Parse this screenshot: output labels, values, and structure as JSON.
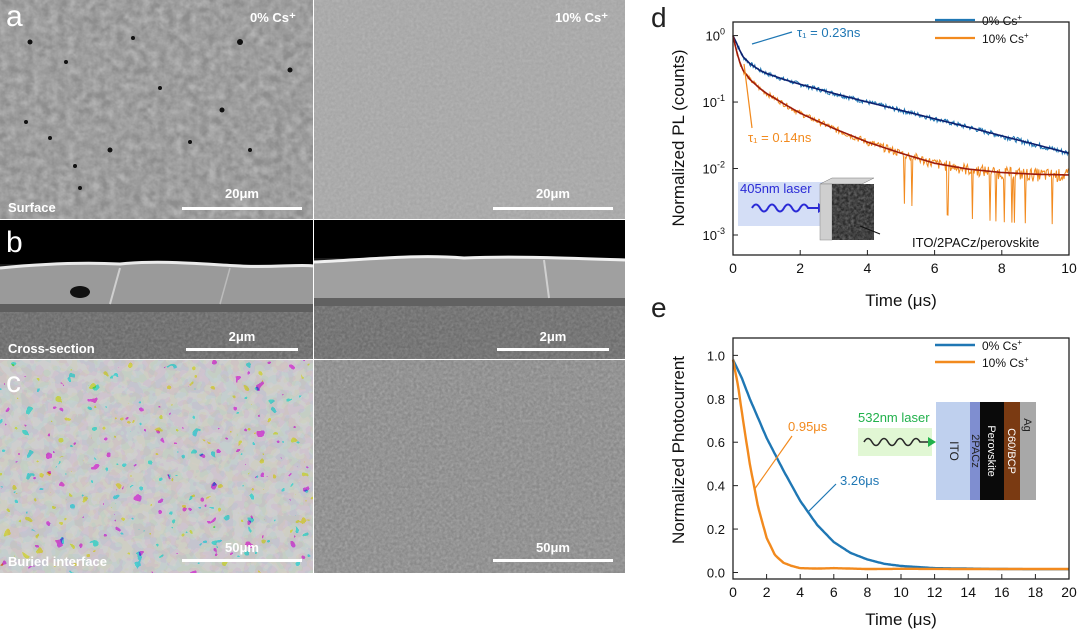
{
  "panels": {
    "a": {
      "label": "a",
      "tag": "Surface",
      "left_title": "0% Cs⁺",
      "right_title": "10% Cs⁺",
      "scale_left": "20μm",
      "scale_right": "20μm"
    },
    "b": {
      "label": "b",
      "tag": "Cross-section",
      "scale_left": "2μm",
      "scale_right": "2μm"
    },
    "c": {
      "label": "c",
      "tag": "Buried interface",
      "scale_left": "50μm",
      "scale_right": "50μm"
    },
    "d": {
      "label": "d"
    },
    "e": {
      "label": "e"
    }
  },
  "colors": {
    "blue": "#1f77b4",
    "orange": "#f28a1e",
    "dark_blue": "#0d1f6e",
    "dark_red": "#9c1b0c",
    "green": "#22b14c",
    "laser_blue": "#2a2ad6"
  },
  "chart_data": [
    {
      "id": "d",
      "type": "line",
      "title": "",
      "xlabel": "Time (μs)",
      "ylabel": "Normalized PL (counts)",
      "xlim": [
        0,
        10
      ],
      "ylim": [
        0.0005,
        1.6
      ],
      "yscale": "log",
      "xticks": [
        0,
        2,
        4,
        6,
        8,
        10
      ],
      "yticks": [
        {
          "value": 1,
          "mantissa": "10",
          "exp": "0"
        },
        {
          "value": 0.1,
          "mantissa": "10",
          "exp": "-1"
        },
        {
          "value": 0.01,
          "mantissa": "10",
          "exp": "-2"
        },
        {
          "value": 0.001,
          "mantissa": "10",
          "exp": "-3"
        }
      ],
      "legend": {
        "position": "top-right",
        "entries": [
          {
            "name": "0% Cs",
            "sup": "+"
          },
          {
            "name": "10% Cs",
            "sup": "+"
          }
        ]
      },
      "series": [
        {
          "name": "0% Cs+",
          "color": "#1f77b4",
          "fit_color": "#0d1f6e",
          "x": [
            0,
            0.1,
            0.2,
            0.3,
            0.5,
            0.8,
            1,
            1.5,
            2,
            3,
            4,
            5,
            6,
            7,
            8,
            9,
            10
          ],
          "values": [
            1.0,
            0.78,
            0.6,
            0.48,
            0.38,
            0.3,
            0.27,
            0.22,
            0.185,
            0.135,
            0.1,
            0.075,
            0.056,
            0.042,
            0.031,
            0.023,
            0.017
          ]
        },
        {
          "name": "10% Cs+",
          "color": "#f28a1e",
          "fit_color": "#9c1b0c",
          "x": [
            0,
            0.1,
            0.2,
            0.3,
            0.5,
            0.8,
            1,
            1.5,
            2,
            3,
            4,
            5,
            6,
            7,
            8,
            9,
            10
          ],
          "values": [
            1.0,
            0.6,
            0.4,
            0.3,
            0.22,
            0.16,
            0.135,
            0.095,
            0.068,
            0.04,
            0.025,
            0.017,
            0.012,
            0.0098,
            0.0087,
            0.0082,
            0.008
          ]
        }
      ],
      "annotations": [
        {
          "text": "τ₁ = 0.23ns",
          "color": "#1f77b4"
        },
        {
          "text": "τ₁ = 0.14ns",
          "color": "#f28a1e"
        },
        {
          "text": "405nm laser",
          "color": "#2a2ad6"
        },
        {
          "text": "ITO/2PACz/perovskite",
          "color": "#111111"
        }
      ]
    },
    {
      "id": "e",
      "type": "line",
      "title": "",
      "xlabel": "Time (μs)",
      "ylabel": "Normalized Photocurrent",
      "xlim": [
        0,
        20
      ],
      "ylim": [
        -0.03,
        1.08
      ],
      "xticks": [
        0,
        2,
        4,
        6,
        8,
        10,
        12,
        14,
        16,
        18,
        20
      ],
      "yticks": [
        0.0,
        0.2,
        0.4,
        0.6,
        0.8,
        1.0
      ],
      "legend": {
        "position": "top-right",
        "entries": [
          {
            "name": "0% Cs",
            "sup": "+"
          },
          {
            "name": "10% Cs",
            "sup": "+"
          }
        ]
      },
      "series": [
        {
          "name": "0% Cs+",
          "color": "#1f77b4",
          "x": [
            0,
            0.5,
            1,
            2,
            3,
            4,
            5,
            6,
            7,
            8,
            9,
            10,
            11,
            12,
            14,
            16,
            18,
            20
          ],
          "values": [
            0.98,
            0.9,
            0.8,
            0.62,
            0.47,
            0.33,
            0.22,
            0.14,
            0.09,
            0.06,
            0.04,
            0.03,
            0.025,
            0.02,
            0.018,
            0.016,
            0.015,
            0.015
          ]
        },
        {
          "name": "10% Cs+",
          "color": "#f28a1e",
          "x": [
            0,
            0.3,
            0.6,
            1,
            1.5,
            2,
            2.5,
            3,
            3.5,
            4,
            5,
            6,
            8,
            10,
            14,
            20
          ],
          "values": [
            0.98,
            0.86,
            0.7,
            0.5,
            0.3,
            0.16,
            0.08,
            0.045,
            0.03,
            0.02,
            0.018,
            0.02,
            0.016,
            0.017,
            0.016,
            0.016
          ]
        }
      ],
      "annotations": [
        {
          "text": "0.95μs",
          "color": "#f28a1e"
        },
        {
          "text": "3.26μs",
          "color": "#1f77b4"
        },
        {
          "text": "532nm laser",
          "color": "#22b14c"
        }
      ],
      "device_layers": [
        "ITO",
        "2PACz",
        "Perovskite",
        "C60/BCP",
        "Ag"
      ]
    }
  ]
}
